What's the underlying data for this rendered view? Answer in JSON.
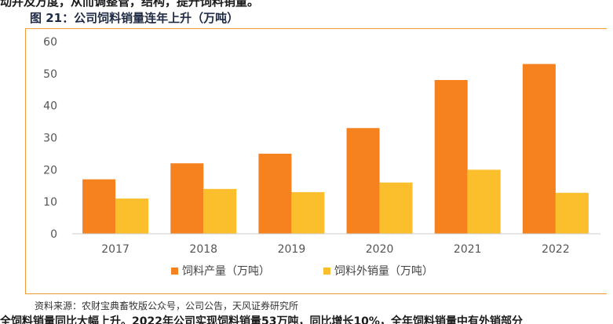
{
  "header_fragment": "动并及方度，从而调整管，结构，提升饲料销量。",
  "figure_title": "图 21：公司饲料销量连年上升（万吨）",
  "source_note": "资料来源：农财宝典畜牧版公众号，公司公告，天风证券研究所",
  "footer_fragment": "全饲料销量同比大幅上升。2022年公司实现饲料销量53万吨，同比增长10%，全年饲料销量中有外销部分",
  "colors": {
    "series1": "#f5821f",
    "series2": "#fbbf2d",
    "rule": "#f29a36",
    "axis": "#cccccc"
  },
  "chart_data": {
    "type": "bar",
    "categories": [
      "2017",
      "2018",
      "2019",
      "2020",
      "2021",
      "2022"
    ],
    "series": [
      {
        "name": "饲料产量（万吨）",
        "values": [
          17,
          22,
          25,
          33,
          48,
          53
        ],
        "color": "#f5821f"
      },
      {
        "name": "饲料外销量（万吨）",
        "values": [
          11,
          14,
          13,
          16,
          20,
          12.8
        ],
        "color": "#fbbf2d"
      }
    ],
    "ylim": [
      0,
      60
    ],
    "yticks": [
      0,
      10,
      20,
      30,
      40,
      50,
      60
    ],
    "grid": false,
    "legend_position": "bottom"
  }
}
